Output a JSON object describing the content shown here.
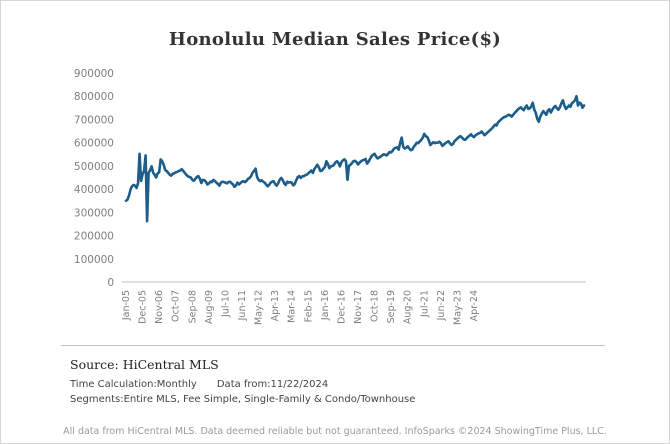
{
  "footer_text": "All data from HiCentral MLS. Data deemed reliable but not guaranteed. InfoSparks ©2024 ShowingTime Plus, LLC.",
  "source": "Source: HiCentral MLS",
  "time_calc": "Time Calculation:Monthly",
  "data_from": "Data from:11/22/2024",
  "segments": "Segments:Entire MLS,  Fee Simple, Single-Family & Condo/Townhouse",
  "colors": {
    "line": "#1c5d8a",
    "axis": "#bfbfbf",
    "text": "#7f7f7f"
  },
  "chart_data": {
    "type": "line",
    "title": "Honolulu Median Sales Price($)",
    "xlabel": "",
    "ylabel": "",
    "ylim": [
      0,
      900000
    ],
    "yticks": [
      0,
      100000,
      200000,
      300000,
      400000,
      500000,
      600000,
      700000,
      800000,
      900000
    ],
    "ytick_labels": [
      "0",
      "100000",
      "200000",
      "300000",
      "400000",
      "500000",
      "600000",
      "700000",
      "800000",
      "900000"
    ],
    "grid": false,
    "legend": "none",
    "xticks": [
      "Jan-05",
      "Dec-05",
      "Nov-06",
      "Oct-07",
      "Sep-08",
      "Aug-09",
      "Jul-10",
      "Jun-11",
      "May-12",
      "Apr-13",
      "Mar-14",
      "Feb-15",
      "Jan-16",
      "Dec-16",
      "Nov-17",
      "Oct-18",
      "Sep-19",
      "Aug-20",
      "Jul-21",
      "Jun-22",
      "May-23",
      "Apr-24"
    ],
    "x_start": "Jan-05",
    "x_end": "Oct-24",
    "x_interval": "monthly",
    "series": [
      {
        "values": [
          350000,
          355000,
          372000,
          398000,
          412000,
          418000,
          415000,
          405000,
          426000,
          552000,
          435000,
          465000,
          478000,
          545000,
          262000,
          470000,
          482000,
          498000,
          470000,
          462000,
          450000,
          468000,
          472000,
          528000,
          520000,
          505000,
          482000,
          478000,
          470000,
          462000,
          458000,
          466000,
          468000,
          472000,
          474000,
          478000,
          480000,
          486000,
          478000,
          470000,
          462000,
          456000,
          452000,
          450000,
          440000,
          436000,
          444000,
          452000,
          456000,
          445000,
          426000,
          440000,
          438000,
          432000,
          420000,
          424000,
          432000,
          430000,
          440000,
          435000,
          428000,
          422000,
          415000,
          428000,
          432000,
          430000,
          428000,
          425000,
          430000,
          432000,
          426000,
          420000,
          410000,
          416000,
          428000,
          420000,
          426000,
          432000,
          434000,
          430000,
          436000,
          444000,
          448000,
          456000,
          470000,
          478000,
          488000,
          452000,
          440000,
          434000,
          438000,
          432000,
          428000,
          420000,
          412000,
          418000,
          428000,
          432000,
          434000,
          422000,
          415000,
          425000,
          440000,
          448000,
          440000,
          425000,
          418000,
          432000,
          428000,
          430000,
          428000,
          416000,
          422000,
          438000,
          452000,
          456000,
          448000,
          455000,
          456000,
          460000,
          462000,
          468000,
          474000,
          480000,
          470000,
          486000,
          495000,
          505000,
          494000,
          478000,
          480000,
          488000,
          495000,
          520000,
          508000,
          490000,
          498000,
          500000,
          504000,
          515000,
          520000,
          512000,
          498000,
          516000,
          524000,
          528000,
          520000,
          440000,
          500000,
          505000,
          512000,
          520000,
          522000,
          516000,
          506000,
          514000,
          520000,
          524000,
          526000,
          530000,
          510000,
          518000,
          530000,
          542000,
          548000,
          552000,
          540000,
          532000,
          536000,
          540000,
          545000,
          550000,
          548000,
          545000,
          552000,
          560000,
          558000,
          565000,
          575000,
          578000,
          580000,
          570000,
          600000,
          622000,
          582000,
          575000,
          578000,
          584000,
          575000,
          568000,
          570000,
          582000,
          590000,
          600000,
          598000,
          606000,
          612000,
          622000,
          638000,
          628000,
          624000,
          610000,
          590000,
          596000,
          602000,
          598000,
          600000,
          600000,
          604000,
          598000,
          586000,
          592000,
          598000,
          602000,
          606000,
          598000,
          590000,
          594000,
          606000,
          612000,
          618000,
          624000,
          628000,
          622000,
          615000,
          612000,
          618000,
          625000,
          630000,
          636000,
          628000,
          624000,
          632000,
          636000,
          640000,
          642000,
          648000,
          640000,
          632000,
          638000,
          644000,
          650000,
          656000,
          662000,
          670000,
          678000,
          674000,
          688000,
          694000,
          700000,
          706000,
          710000,
          712000,
          716000,
          720000,
          718000,
          712000,
          720000,
          728000,
          735000,
          742000,
          748000,
          752000,
          745000,
          740000,
          752000,
          760000,
          745000,
          748000,
          756000,
          772000,
          742000,
          728000,
          702000,
          690000,
          712000,
          725000,
          736000,
          728000,
          720000,
          738000,
          744000,
          730000,
          742000,
          752000,
          758000,
          748000,
          742000,
          752000,
          770000,
          782000,
          760000,
          745000,
          752000,
          760000,
          755000,
          770000,
          775000,
          782000,
          800000,
          760000,
          772000,
          768000,
          750000,
          760000
        ]
      }
    ]
  }
}
